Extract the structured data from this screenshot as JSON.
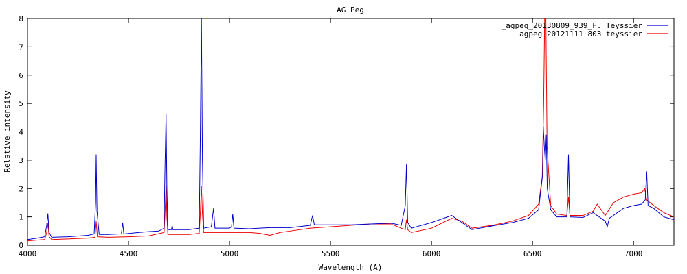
{
  "chart_data": {
    "type": "line",
    "title": "AG Peg",
    "xlabel": "Wavelength (A)",
    "ylabel": "Relative intensity",
    "xlim": [
      4000,
      7200
    ],
    "ylim": [
      0,
      8
    ],
    "xticks": [
      4000,
      4500,
      5000,
      5500,
      6000,
      6500,
      7000
    ],
    "yticks": [
      0,
      1,
      2,
      3,
      4,
      5,
      6,
      7,
      8
    ],
    "grid": false,
    "legend_position": "top-right",
    "series": [
      {
        "name": "_agpeg_20130809_939_F. Teyssier",
        "color": "#0000cc",
        "points": [
          [
            4000,
            0.2
          ],
          [
            4050,
            0.25
          ],
          [
            4085,
            0.3
          ],
          [
            4095,
            0.7
          ],
          [
            4101,
            1.12
          ],
          [
            4107,
            0.45
          ],
          [
            4120,
            0.28
          ],
          [
            4200,
            0.3
          ],
          [
            4300,
            0.35
          ],
          [
            4330,
            0.4
          ],
          [
            4337,
            1.5
          ],
          [
            4340,
            3.2
          ],
          [
            4344,
            1.2
          ],
          [
            4355,
            0.38
          ],
          [
            4400,
            0.38
          ],
          [
            4465,
            0.4
          ],
          [
            4471,
            0.8
          ],
          [
            4477,
            0.4
          ],
          [
            4550,
            0.45
          ],
          [
            4600,
            0.48
          ],
          [
            4650,
            0.5
          ],
          [
            4676,
            0.6
          ],
          [
            4680,
            2.5
          ],
          [
            4686,
            4.65
          ],
          [
            4690,
            2.0
          ],
          [
            4695,
            0.55
          ],
          [
            4713,
            0.55
          ],
          [
            4716,
            0.7
          ],
          [
            4720,
            0.55
          ],
          [
            4800,
            0.55
          ],
          [
            4850,
            0.6
          ],
          [
            4855,
            3.5
          ],
          [
            4861,
            8.0
          ],
          [
            4866,
            3.0
          ],
          [
            4872,
            0.6
          ],
          [
            4910,
            0.65
          ],
          [
            4921,
            1.3
          ],
          [
            4928,
            0.6
          ],
          [
            5000,
            0.6
          ],
          [
            5010,
            0.65
          ],
          [
            5016,
            1.1
          ],
          [
            5022,
            0.6
          ],
          [
            5100,
            0.58
          ],
          [
            5150,
            0.6
          ],
          [
            5200,
            0.62
          ],
          [
            5300,
            0.62
          ],
          [
            5400,
            0.7
          ],
          [
            5411,
            1.05
          ],
          [
            5420,
            0.72
          ],
          [
            5500,
            0.72
          ],
          [
            5600,
            0.72
          ],
          [
            5700,
            0.75
          ],
          [
            5800,
            0.78
          ],
          [
            5850,
            0.7
          ],
          [
            5870,
            1.4
          ],
          [
            5876,
            2.85
          ],
          [
            5882,
            0.8
          ],
          [
            5900,
            0.6
          ],
          [
            6000,
            0.8
          ],
          [
            6080,
            1.0
          ],
          [
            6100,
            1.05
          ],
          [
            6150,
            0.8
          ],
          [
            6200,
            0.55
          ],
          [
            6300,
            0.68
          ],
          [
            6400,
            0.8
          ],
          [
            6480,
            0.95
          ],
          [
            6530,
            1.25
          ],
          [
            6550,
            2.5
          ],
          [
            6553,
            4.2
          ],
          [
            6558,
            3.5
          ],
          [
            6563,
            3.0
          ],
          [
            6568,
            3.9
          ],
          [
            6573,
            2.0
          ],
          [
            6590,
            1.25
          ],
          [
            6620,
            1.0
          ],
          [
            6670,
            1.0
          ],
          [
            6678,
            3.2
          ],
          [
            6685,
            1.0
          ],
          [
            6750,
            0.98
          ],
          [
            6800,
            1.15
          ],
          [
            6860,
            0.85
          ],
          [
            6870,
            0.65
          ],
          [
            6880,
            0.95
          ],
          [
            6950,
            1.3
          ],
          [
            7000,
            1.4
          ],
          [
            7040,
            1.45
          ],
          [
            7058,
            1.6
          ],
          [
            7065,
            2.6
          ],
          [
            7072,
            1.4
          ],
          [
            7100,
            1.3
          ],
          [
            7150,
            1.0
          ],
          [
            7200,
            0.9
          ]
        ]
      },
      {
        "name": "_agpeg_20121111_803_teyssier",
        "color": "#ee0000",
        "points": [
          [
            4000,
            0.15
          ],
          [
            4050,
            0.18
          ],
          [
            4085,
            0.2
          ],
          [
            4095,
            0.45
          ],
          [
            4101,
            0.78
          ],
          [
            4107,
            0.3
          ],
          [
            4120,
            0.2
          ],
          [
            4200,
            0.22
          ],
          [
            4300,
            0.25
          ],
          [
            4334,
            0.28
          ],
          [
            4340,
            0.85
          ],
          [
            4346,
            0.3
          ],
          [
            4400,
            0.28
          ],
          [
            4500,
            0.3
          ],
          [
            4600,
            0.33
          ],
          [
            4676,
            0.45
          ],
          [
            4680,
            1.0
          ],
          [
            4686,
            2.1
          ],
          [
            4690,
            1.0
          ],
          [
            4695,
            0.38
          ],
          [
            4800,
            0.38
          ],
          [
            4850,
            0.42
          ],
          [
            4856,
            1.2
          ],
          [
            4861,
            2.1
          ],
          [
            4866,
            1.1
          ],
          [
            4872,
            0.45
          ],
          [
            5000,
            0.45
          ],
          [
            5100,
            0.45
          ],
          [
            5150,
            0.42
          ],
          [
            5200,
            0.35
          ],
          [
            5250,
            0.45
          ],
          [
            5300,
            0.5
          ],
          [
            5400,
            0.6
          ],
          [
            5500,
            0.65
          ],
          [
            5600,
            0.7
          ],
          [
            5700,
            0.75
          ],
          [
            5800,
            0.75
          ],
          [
            5850,
            0.6
          ],
          [
            5870,
            0.55
          ],
          [
            5876,
            0.9
          ],
          [
            5882,
            0.55
          ],
          [
            5900,
            0.45
          ],
          [
            6000,
            0.6
          ],
          [
            6100,
            0.95
          ],
          [
            6150,
            0.85
          ],
          [
            6200,
            0.6
          ],
          [
            6300,
            0.7
          ],
          [
            6400,
            0.85
          ],
          [
            6480,
            1.05
          ],
          [
            6530,
            1.45
          ],
          [
            6548,
            2.4
          ],
          [
            6555,
            5.0
          ],
          [
            6560,
            8.0
          ],
          [
            6566,
            8.0
          ],
          [
            6572,
            3.5
          ],
          [
            6590,
            1.4
          ],
          [
            6620,
            1.1
          ],
          [
            6670,
            1.05
          ],
          [
            6678,
            1.7
          ],
          [
            6685,
            1.05
          ],
          [
            6750,
            1.05
          ],
          [
            6800,
            1.2
          ],
          [
            6820,
            1.45
          ],
          [
            6860,
            1.05
          ],
          [
            6900,
            1.5
          ],
          [
            6950,
            1.7
          ],
          [
            7000,
            1.8
          ],
          [
            7040,
            1.85
          ],
          [
            7055,
            2.0
          ],
          [
            7065,
            1.6
          ],
          [
            7100,
            1.4
          ],
          [
            7150,
            1.15
          ],
          [
            7200,
            1.0
          ]
        ]
      }
    ]
  }
}
